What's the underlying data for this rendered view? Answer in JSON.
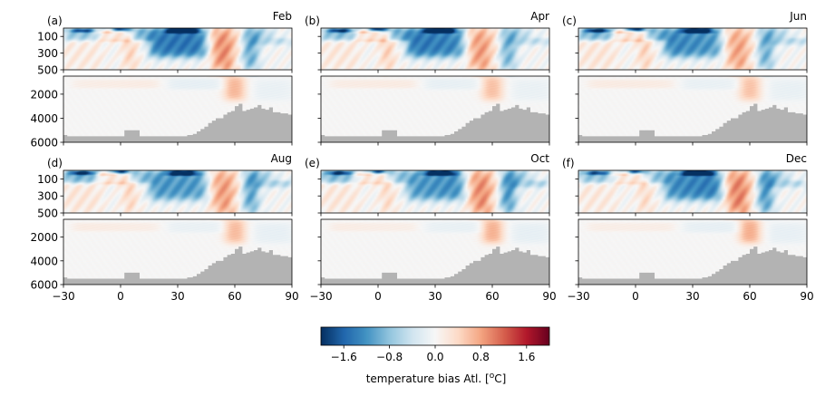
{
  "chart_data": {
    "type": "heatmap",
    "colormap": "RdBu_r",
    "colorbar": {
      "label": "temperature bias Atl. [°C]",
      "label_base": "temperature bias Atl. [",
      "label_sup": "o",
      "label_end": "C]",
      "vmin": -2.0,
      "vmax": 2.0,
      "ticks": [
        -1.6,
        -0.8,
        0.0,
        0.8,
        1.6
      ],
      "tick_labels": [
        "−1.6",
        "−0.8",
        "0.0",
        "0.8",
        "1.6"
      ]
    },
    "x_axis": {
      "xlim": [
        -30,
        90
      ],
      "ticks": [
        -30,
        0,
        30,
        60,
        90
      ],
      "tick_labels": [
        "−30",
        "0",
        "30",
        "60",
        "90"
      ]
    },
    "upper_y_axis": {
      "ylim": [
        500,
        0
      ],
      "ticks": [
        100,
        300,
        500
      ],
      "tick_labels": [
        "100",
        "300",
        "500"
      ]
    },
    "lower_y_axis": {
      "ylim": [
        6000,
        500
      ],
      "ticks": [
        2000,
        4000,
        6000
      ],
      "tick_labels": [
        "2000",
        "4000",
        "6000"
      ]
    },
    "bathymetry": {
      "color": "#b3b3b3",
      "x": [
        -30,
        -28,
        -20,
        -10,
        -5,
        -2,
        2,
        5,
        8,
        10,
        15,
        20,
        25,
        30,
        35,
        38,
        40,
        42,
        44,
        46,
        48,
        50,
        52,
        54,
        56,
        58,
        60,
        62,
        64,
        66,
        68,
        70,
        72,
        74,
        76,
        78,
        80,
        82,
        84,
        86,
        88,
        90
      ],
      "depth": [
        5400,
        5500,
        5500,
        5500,
        5500,
        5500,
        5000,
        5000,
        5000,
        5500,
        5500,
        5500,
        5500,
        5500,
        5400,
        5300,
        5100,
        4900,
        4700,
        4400,
        4200,
        4000,
        4000,
        3700,
        3500,
        3400,
        3000,
        2800,
        3400,
        3300,
        3200,
        3100,
        2900,
        3200,
        3300,
        3100,
        3500,
        3500,
        3600,
        3600,
        3700,
        3700
      ]
    },
    "panels": [
      {
        "label": "(a)",
        "title": "Feb"
      },
      {
        "label": "(b)",
        "title": "Apr"
      },
      {
        "label": "(c)",
        "title": "Jun"
      },
      {
        "label": "(d)",
        "title": "Aug"
      },
      {
        "label": "(e)",
        "title": "Oct"
      },
      {
        "label": "(f)",
        "title": "Dec"
      }
    ],
    "bias_features": [
      {
        "x": [
          -30,
          15
        ],
        "z": [
          0,
          150
        ],
        "value": -0.9
      },
      {
        "x": [
          -25,
          -15
        ],
        "z": [
          10,
          50
        ],
        "value": -1.4
      },
      {
        "x": [
          -12,
          -4
        ],
        "z": [
          10,
          60
        ],
        "value": 0.8
      },
      {
        "x": [
          -3,
          3
        ],
        "z": [
          0,
          30
        ],
        "value": -1.9
      },
      {
        "x": [
          -12,
          5
        ],
        "z": [
          40,
          160
        ],
        "value": 1.1
      },
      {
        "x": [
          2,
          8
        ],
        "z": [
          60,
          500
        ],
        "value": 0.5
      },
      {
        "x": [
          -30,
          -10
        ],
        "z": [
          120,
          500
        ],
        "value": 0.2
      },
      {
        "x": [
          15,
          45
        ],
        "z": [
          0,
          350
        ],
        "value": -1.3
      },
      {
        "x": [
          25,
          40
        ],
        "z": [
          0,
          60
        ],
        "value": -1.7
      },
      {
        "x": [
          48,
          58
        ],
        "z": [
          0,
          500
        ],
        "value": 0.9
      },
      {
        "x": [
          58,
          64
        ],
        "z": [
          0,
          300
        ],
        "value": 0.4
      },
      {
        "x": [
          64,
          72
        ],
        "z": [
          0,
          500
        ],
        "value": -1.2
      },
      {
        "x": [
          70,
          90
        ],
        "z": [
          0,
          200
        ],
        "value": -0.6
      },
      {
        "x": [
          80,
          90
        ],
        "z": [
          0,
          120
        ],
        "value": 0.5
      },
      {
        "x": [
          55,
          65
        ],
        "z": [
          500,
          2500
        ],
        "value": 0.7
      },
      {
        "x": [
          -25,
          20
        ],
        "z": [
          800,
          1500
        ],
        "value": 0.15
      },
      {
        "x": [
          25,
          55
        ],
        "z": [
          700,
          1600
        ],
        "value": -0.15
      },
      {
        "x": [
          70,
          90
        ],
        "z": [
          800,
          2500
        ],
        "value": -0.15
      }
    ]
  }
}
